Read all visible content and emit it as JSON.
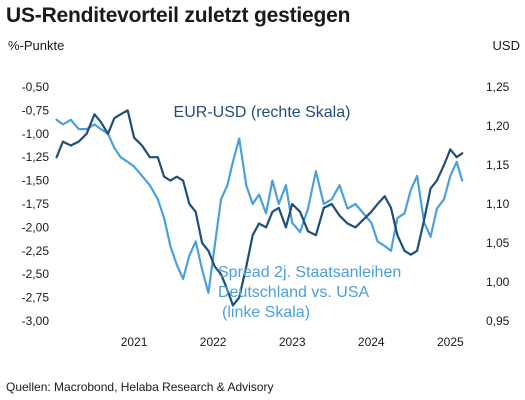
{
  "chart_data": {
    "type": "line",
    "title": "US-Renditevorteil zuletzt gestiegen",
    "left_axis": {
      "unit": "%-Punkte",
      "ylim": [
        -3.0,
        -0.5
      ],
      "ticks": [
        -0.5,
        -0.75,
        -1.0,
        -1.25,
        -1.5,
        -1.75,
        -2.0,
        -2.25,
        -2.5,
        -2.75,
        -3.0
      ],
      "tick_labels": [
        "-0,50",
        "-0,75",
        "-1,00",
        "-1,25",
        "-1,50",
        "-1,75",
        "-2,00",
        "-2,25",
        "-2,50",
        "-2,75",
        "-3,00"
      ]
    },
    "right_axis": {
      "unit": "USD",
      "ylim": [
        0.95,
        1.25
      ],
      "ticks": [
        1.25,
        1.2,
        1.15,
        1.1,
        1.05,
        1.0,
        0.95
      ],
      "tick_labels": [
        "1,25",
        "1,20",
        "1,15",
        "1,10",
        "1,05",
        "1,00",
        "0,95"
      ]
    },
    "x_axis": {
      "xlim": [
        2020.5,
        2025.85
      ],
      "ticks": [
        2021.0,
        2022.0,
        2023.0,
        2024.0,
        2025.0
      ],
      "tick_labels": [
        "2021",
        "2022",
        "2023",
        "2024",
        "2025"
      ]
    },
    "grid": false,
    "series": [
      {
        "name": "EUR-USD (rechte Skala)",
        "axis": "right",
        "color": "#1f4e79",
        "x": [
          2020.52,
          2020.6,
          2020.7,
          2020.8,
          2020.9,
          2021.0,
          2021.08,
          2021.17,
          2021.25,
          2021.33,
          2021.42,
          2021.5,
          2021.6,
          2021.7,
          2021.8,
          2021.88,
          2021.96,
          2022.04,
          2022.12,
          2022.2,
          2022.28,
          2022.36,
          2022.44,
          2022.52,
          2022.6,
          2022.68,
          2022.75,
          2022.83,
          2022.92,
          2023.0,
          2023.08,
          2023.17,
          2023.25,
          2023.33,
          2023.42,
          2023.5,
          2023.6,
          2023.7,
          2023.8,
          2023.9,
          2024.0,
          2024.1,
          2024.2,
          2024.3,
          2024.4,
          2024.5,
          2024.58,
          2024.67,
          2024.75,
          2024.83,
          2024.92,
          2025.0,
          2025.08,
          2025.17,
          2025.25,
          2025.33,
          2025.42,
          2025.5,
          2025.58,
          2025.65
        ],
        "y": [
          1.16,
          1.18,
          1.175,
          1.18,
          1.19,
          1.215,
          1.205,
          1.19,
          1.21,
          1.215,
          1.22,
          1.185,
          1.175,
          1.16,
          1.16,
          1.135,
          1.13,
          1.135,
          1.13,
          1.1,
          1.09,
          1.05,
          1.04,
          1.02,
          1.01,
          0.99,
          0.97,
          0.98,
          1.02,
          1.06,
          1.075,
          1.07,
          1.09,
          1.095,
          1.07,
          1.1,
          1.09,
          1.065,
          1.06,
          1.095,
          1.1,
          1.085,
          1.075,
          1.07,
          1.08,
          1.09,
          1.1,
          1.11,
          1.095,
          1.06,
          1.04,
          1.035,
          1.04,
          1.08,
          1.12,
          1.13,
          1.15,
          1.17,
          1.16,
          1.165
        ]
      },
      {
        "name": "Spread 2j. Staatsanleihen Deutschland vs. USA (linke Skala)",
        "axis": "left",
        "color": "#4a9fdc",
        "x": [
          2020.52,
          2020.6,
          2020.7,
          2020.8,
          2020.9,
          2021.0,
          2021.08,
          2021.17,
          2021.25,
          2021.33,
          2021.42,
          2021.5,
          2021.6,
          2021.7,
          2021.8,
          2021.88,
          2021.96,
          2022.04,
          2022.12,
          2022.2,
          2022.28,
          2022.36,
          2022.44,
          2022.52,
          2022.6,
          2022.68,
          2022.75,
          2022.83,
          2022.92,
          2023.0,
          2023.08,
          2023.17,
          2023.25,
          2023.33,
          2023.42,
          2023.5,
          2023.6,
          2023.7,
          2023.8,
          2023.9,
          2024.0,
          2024.1,
          2024.2,
          2024.3,
          2024.4,
          2024.5,
          2024.58,
          2024.67,
          2024.75,
          2024.83,
          2024.92,
          2025.0,
          2025.08,
          2025.17,
          2025.25,
          2025.33,
          2025.42,
          2025.5,
          2025.58,
          2025.65
        ],
        "y": [
          -0.85,
          -0.9,
          -0.85,
          -0.95,
          -0.95,
          -0.9,
          -0.95,
          -1.0,
          -1.15,
          -1.25,
          -1.3,
          -1.35,
          -1.45,
          -1.55,
          -1.7,
          -1.9,
          -2.2,
          -2.4,
          -2.55,
          -2.3,
          -2.15,
          -2.45,
          -2.7,
          -2.2,
          -1.7,
          -1.55,
          -1.3,
          -1.05,
          -1.55,
          -1.75,
          -1.65,
          -1.85,
          -1.5,
          -1.75,
          -1.55,
          -1.95,
          -2.05,
          -1.8,
          -1.4,
          -1.75,
          -1.7,
          -1.55,
          -1.8,
          -1.75,
          -1.85,
          -1.95,
          -2.15,
          -2.2,
          -2.25,
          -1.9,
          -1.85,
          -1.6,
          -1.45,
          -1.95,
          -2.1,
          -1.8,
          -1.7,
          -1.45,
          -1.3,
          -1.5
        ]
      }
    ],
    "annotations": {
      "eur_usd": "EUR-USD (rechte Skala)",
      "spread_line1": "Spread 2j. Staatsanleihen",
      "spread_line2": "Deutschland vs. USA",
      "spread_line3": "(linke Skala)"
    },
    "source": "Quellen: Macrobond, Helaba Research & Advisory"
  }
}
